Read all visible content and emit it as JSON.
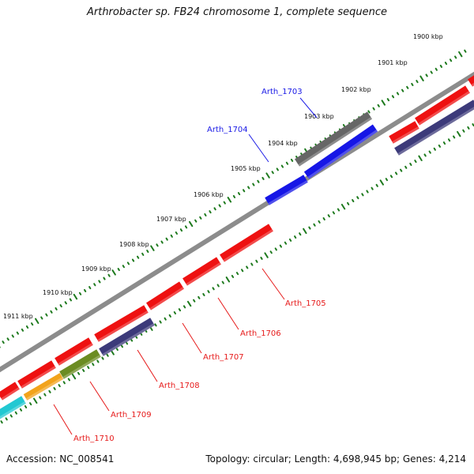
{
  "title": "Arthrobacter sp. FB24 chromosome 1, complete sequence",
  "footer": {
    "accession": "Accession: NC_008541",
    "topology": "Topology: circular; Length: 4,698,945 bp; Genes: 4,214"
  },
  "colors": {
    "backbone": "#8c8c8c",
    "ruler": "#1e7a1e",
    "cds_red": "#ee1111",
    "cds_blue": "#1616e6",
    "cds_gray": "#666666",
    "cds_navy": "#3c3a7a",
    "cds_olive": "#6b8c22",
    "cds_orange": "#f2a31b",
    "cds_cyan": "#22c8d2",
    "label_red": "#e61a1a",
    "label_blue": "#1a1ae6"
  },
  "ruler": {
    "ticks": [
      "1900 kbp",
      "1901 kbp",
      "1902 kbp",
      "1903 kbp",
      "1904 kbp",
      "1905 kbp",
      "1906 kbp",
      "1907 kbp",
      "1908 kbp",
      "1909 kbp",
      "1910 kbp",
      "1911 kbp"
    ]
  },
  "gene_labels": [
    {
      "id": "Arth_1703",
      "color": "blue"
    },
    {
      "id": "Arth_1704",
      "color": "blue"
    },
    {
      "id": "Arth_1705",
      "color": "red"
    },
    {
      "id": "Arth_1706",
      "color": "red"
    },
    {
      "id": "Arth_1707",
      "color": "red"
    },
    {
      "id": "Arth_1708",
      "color": "red"
    },
    {
      "id": "Arth_1709",
      "color": "red"
    },
    {
      "id": "Arth_1710",
      "color": "red"
    }
  ]
}
